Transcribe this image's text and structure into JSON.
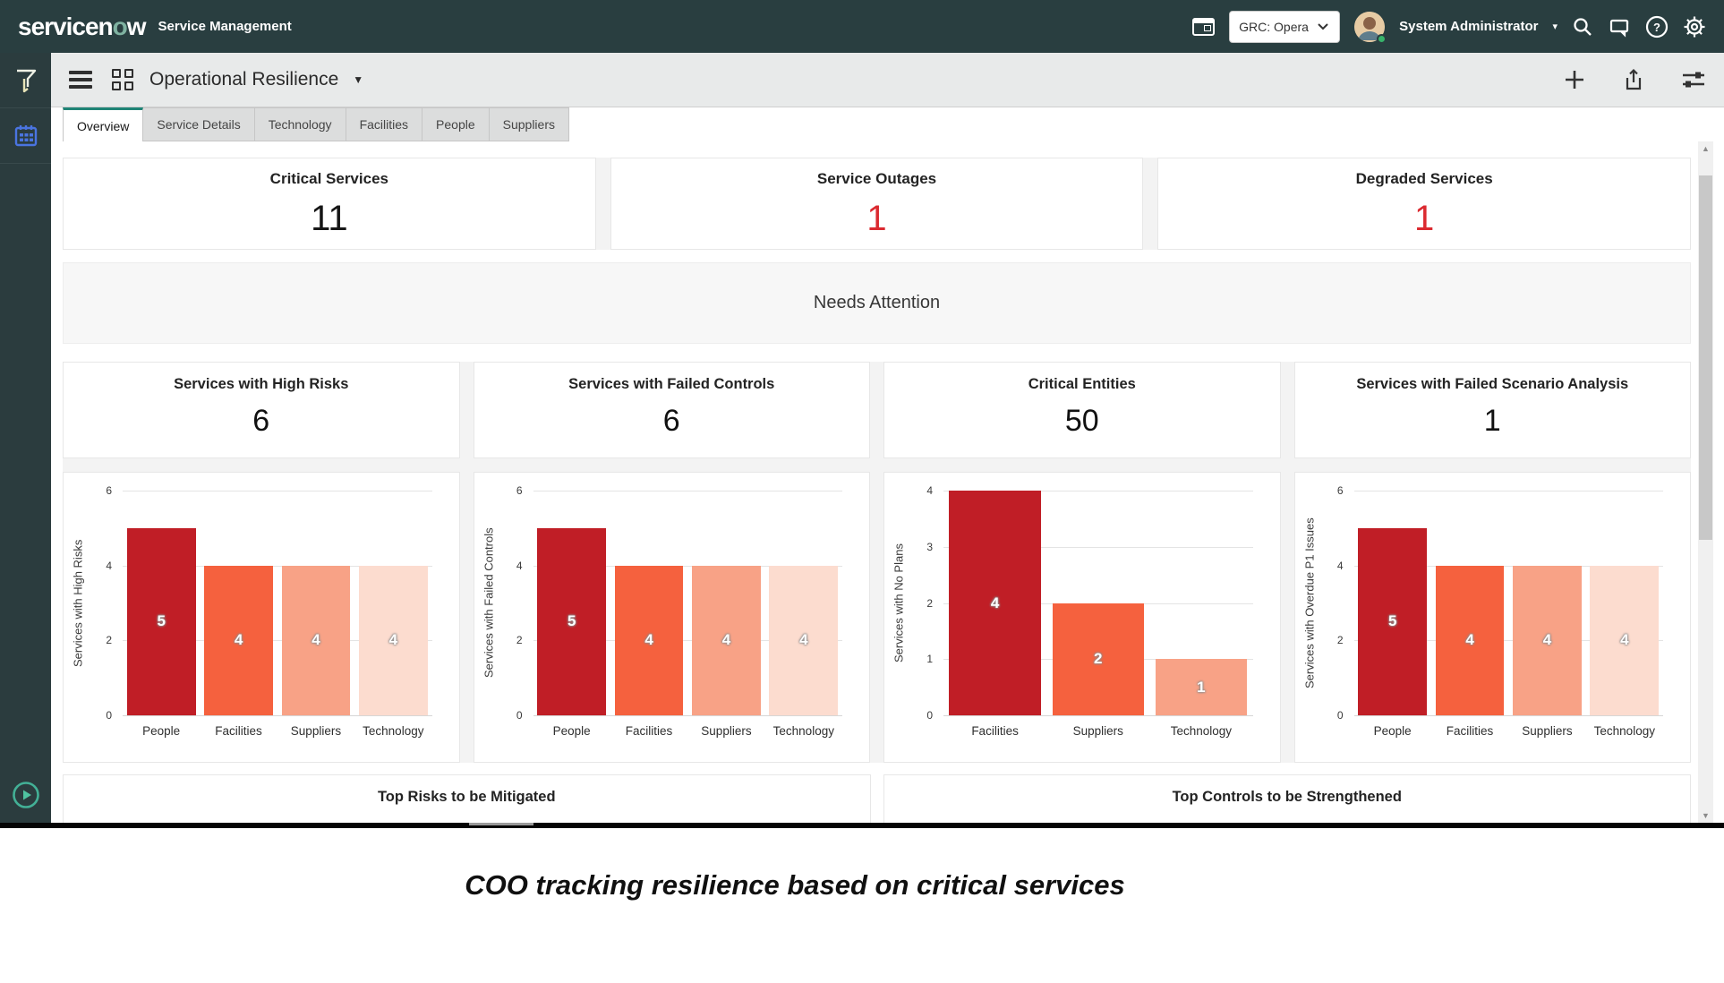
{
  "header": {
    "logo_part1": "servicen",
    "logo_part2": "o",
    "logo_part3": "w",
    "app_label": "Service Management",
    "scope_selector": "GRC: Opera",
    "user_name": "System Administrator",
    "brand_green": "#7fb2a1",
    "header_bg": "#293e40"
  },
  "toolbar": {
    "title": "Operational Resilience"
  },
  "tabs": [
    {
      "label": "Overview",
      "active": true
    },
    {
      "label": "Service Details",
      "active": false
    },
    {
      "label": "Technology",
      "active": false
    },
    {
      "label": "Facilities",
      "active": false
    },
    {
      "label": "People",
      "active": false
    },
    {
      "label": "Suppliers",
      "active": false
    }
  ],
  "kpis": [
    {
      "title": "Critical Services",
      "value": "11",
      "color": "#161616"
    },
    {
      "title": "Service Outages",
      "value": "1",
      "color": "#db2a30"
    },
    {
      "title": "Degraded Services",
      "value": "1",
      "color": "#db2a30"
    }
  ],
  "needs_attention_label": "Needs Attention",
  "bar_palette": [
    "#c01e26",
    "#f5613e",
    "#f8a286",
    "#fcdccf"
  ],
  "chart_cards": [
    {
      "title": "Services with High Risks",
      "value": "6",
      "chart": {
        "type": "bar",
        "ylabel": "Services with High Risks",
        "ymax": 6,
        "ticks": [
          0,
          2,
          4,
          6
        ],
        "categories": [
          "People",
          "Facilities",
          "Suppliers",
          "Technology"
        ],
        "values": [
          5,
          4,
          4,
          4
        ]
      }
    },
    {
      "title": "Services with Failed Controls",
      "value": "6",
      "chart": {
        "type": "bar",
        "ylabel": "Services with Failed Controls",
        "ymax": 6,
        "ticks": [
          0,
          2,
          4,
          6
        ],
        "categories": [
          "People",
          "Facilities",
          "Suppliers",
          "Technology"
        ],
        "values": [
          5,
          4,
          4,
          4
        ]
      }
    },
    {
      "title": "Critical Entities",
      "value": "50",
      "chart": {
        "type": "bar",
        "ylabel": "Services with No Plans",
        "ymax": 4,
        "ticks": [
          0,
          1,
          2,
          3,
          4
        ],
        "categories": [
          "Facilities",
          "Suppliers",
          "Technology"
        ],
        "values": [
          4,
          2,
          1
        ]
      }
    },
    {
      "title": "Services with Failed Scenario Analysis",
      "value": "1",
      "chart": {
        "type": "bar",
        "ylabel": "Services with Overdue P1 Issues",
        "ymax": 6,
        "ticks": [
          0,
          2,
          4,
          6
        ],
        "categories": [
          "People",
          "Facilities",
          "Suppliers",
          "Technology"
        ],
        "values": [
          5,
          4,
          4,
          4
        ]
      }
    }
  ],
  "bottom_cards": [
    {
      "title": "Top Risks to be Mitigated"
    },
    {
      "title": "Top Controls to be Strengthened"
    }
  ],
  "caption": "COO tracking resilience based on critical services"
}
